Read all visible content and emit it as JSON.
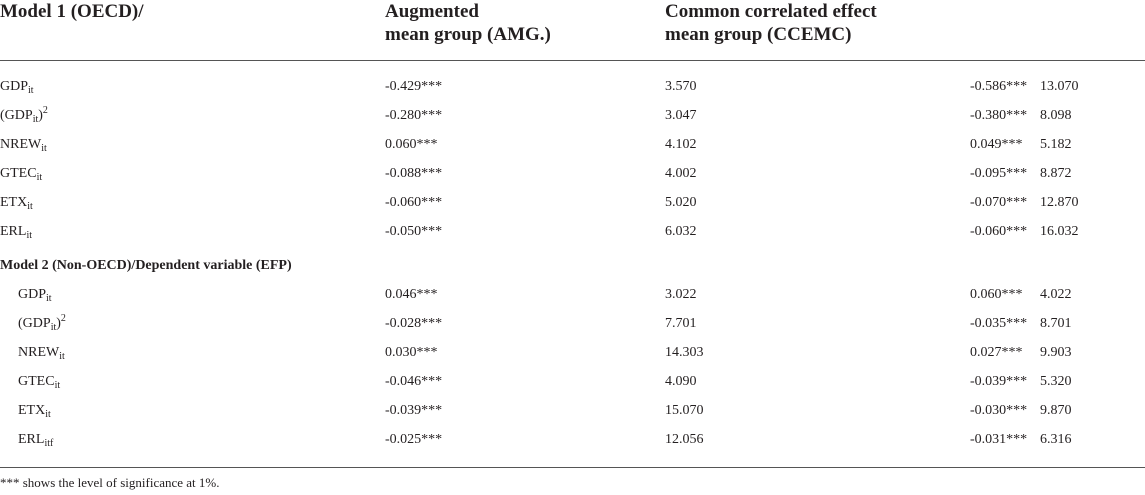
{
  "header": {
    "col1": "Model 1 (OECD)/",
    "col2_line1": "Augmented",
    "col2_line2": "mean group (AMG.)",
    "col3_line1": "Common correlated effect",
    "col3_line2": "mean group (CCEMC)"
  },
  "model1_rows": [
    {
      "var": "GDP",
      "sub": "it",
      "sup": "",
      "paren": false,
      "amg_coef": "-0.429***",
      "amg_stat": "3.570",
      "cce_coef": "-0.586***",
      "cce_stat": "13.070"
    },
    {
      "var": "GDP",
      "sub": "it",
      "sup": "2",
      "paren": true,
      "amg_coef": "-0.280***",
      "amg_stat": "3.047",
      "cce_coef": "-0.380***",
      "cce_stat": "8.098"
    },
    {
      "var": "NREW",
      "sub": "it",
      "sup": "",
      "paren": false,
      "amg_coef": "0.060***",
      "amg_stat": "4.102",
      "cce_coef": "0.049***",
      "cce_stat": "5.182"
    },
    {
      "var": "GTEC",
      "sub": "it",
      "sup": "",
      "paren": false,
      "amg_coef": "-0.088***",
      "amg_stat": "4.002",
      "cce_coef": "-0.095***",
      "cce_stat": "8.872"
    },
    {
      "var": "ETX",
      "sub": "it",
      "sup": "",
      "paren": false,
      "amg_coef": "-0.060***",
      "amg_stat": "5.020",
      "cce_coef": "-0.070***",
      "cce_stat": "12.870"
    },
    {
      "var": "ERL",
      "sub": "it",
      "sup": "",
      "paren": false,
      "amg_coef": "-0.050***",
      "amg_stat": "6.032",
      "cce_coef": "-0.060***",
      "cce_stat": "16.032"
    }
  ],
  "section2_title": "Model 2 (Non-OECD)/Dependent variable (EFP)",
  "model2_rows": [
    {
      "var": "GDP",
      "sub": "it",
      "sup": "",
      "paren": false,
      "amg_coef": "0.046***",
      "amg_stat": "3.022",
      "cce_coef": "0.060***",
      "cce_stat": "4.022"
    },
    {
      "var": "GDP",
      "sub": "it",
      "sup": "2",
      "paren": true,
      "amg_coef": "-0.028***",
      "amg_stat": "7.701",
      "cce_coef": "-0.035***",
      "cce_stat": "8.701"
    },
    {
      "var": "NREW",
      "sub": "it",
      "sup": "",
      "paren": false,
      "amg_coef": "0.030***",
      "amg_stat": "14.303",
      "cce_coef": "0.027***",
      "cce_stat": "9.903"
    },
    {
      "var": "GTEC",
      "sub": "it",
      "sup": "",
      "paren": false,
      "amg_coef": "-0.046***",
      "amg_stat": "4.090",
      "cce_coef": "-0.039***",
      "cce_stat": "5.320"
    },
    {
      "var": "ETX",
      "sub": "it",
      "sup": "",
      "paren": false,
      "amg_coef": "-0.039***",
      "amg_stat": "15.070",
      "cce_coef": "-0.030***",
      "cce_stat": "9.870"
    },
    {
      "var": "ERL",
      "sub": "itf",
      "sup": "",
      "paren": false,
      "amg_coef": "-0.025***",
      "amg_stat": "12.056",
      "cce_coef": "-0.031***",
      "cce_stat": "6.316"
    }
  ],
  "footnote": "*** shows the level of significance at 1%."
}
